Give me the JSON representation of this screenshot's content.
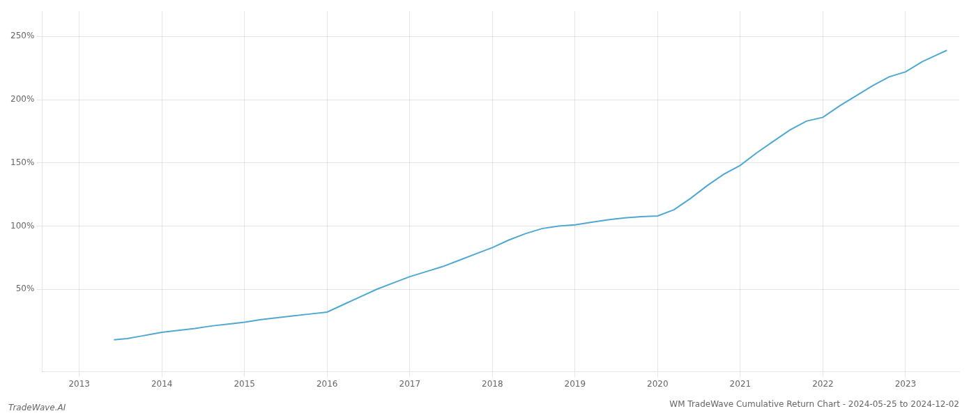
{
  "chart_data": {
    "type": "line",
    "title": "WM TradeWave Cumulative Return Chart - 2024-05-25 to 2024-12-02",
    "annotations": [
      "TradeWave.AI"
    ],
    "color": "#4ea8d2",
    "grid": true,
    "xlim": [
      2012.55,
      2023.65
    ],
    "ylim": [
      -15,
      270
    ],
    "xticks": [
      2013,
      2014,
      2015,
      2016,
      2017,
      2018,
      2019,
      2020,
      2021,
      2022,
      2023
    ],
    "yticks": [
      {
        "value": 50,
        "label": "50%"
      },
      {
        "value": 100,
        "label": "100%"
      },
      {
        "value": 150,
        "label": "150%"
      },
      {
        "value": 200,
        "label": "200%"
      },
      {
        "value": 250,
        "label": "250%"
      }
    ],
    "x": [
      2013.42,
      2013.58,
      2013.75,
      2013.92,
      2014.0,
      2014.2,
      2014.4,
      2014.6,
      2014.8,
      2015.0,
      2015.2,
      2015.4,
      2015.6,
      2015.8,
      2016.0,
      2016.2,
      2016.4,
      2016.6,
      2016.8,
      2017.0,
      2017.2,
      2017.4,
      2017.6,
      2017.8,
      2018.0,
      2018.2,
      2018.4,
      2018.6,
      2018.8,
      2019.0,
      2019.2,
      2019.4,
      2019.6,
      2019.8,
      2020.0,
      2020.2,
      2020.4,
      2020.6,
      2020.8,
      2021.0,
      2021.2,
      2021.4,
      2021.6,
      2021.8,
      2022.0,
      2022.2,
      2022.4,
      2022.6,
      2022.8,
      2023.0,
      2023.2,
      2023.4,
      2023.5
    ],
    "values": [
      10,
      11,
      13,
      15,
      16,
      17.5,
      19,
      21,
      22.5,
      24,
      26,
      27.5,
      29,
      30.5,
      32,
      38,
      44,
      50,
      55,
      60,
      64,
      68,
      73,
      78,
      83,
      89,
      94,
      98,
      100,
      101,
      103,
      105,
      106.5,
      107.5,
      108,
      113,
      122,
      132,
      141,
      148,
      158,
      167,
      176,
      183,
      186,
      195,
      203,
      211,
      218,
      222,
      230,
      236,
      239
    ]
  }
}
